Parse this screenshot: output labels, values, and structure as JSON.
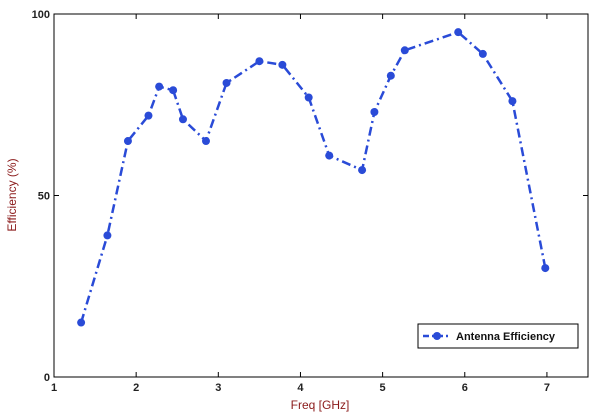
{
  "chart_data": {
    "type": "line",
    "title": "",
    "xlabel": "Freq [GHz]",
    "ylabel": "Efficiency (%)",
    "xlim": [
      1,
      7.5
    ],
    "ylim": [
      0,
      100
    ],
    "x_ticks": [
      "1",
      "2",
      "3",
      "4",
      "5",
      "6",
      "7"
    ],
    "y_ticks": [
      "0",
      "50",
      "100"
    ],
    "grid": false,
    "legend_position": "bottom-right",
    "series": [
      {
        "name": "Antenna Efficiency",
        "color": "#2a4bd7",
        "line_style": "dash-dot",
        "marker": "circle",
        "x": [
          1.33,
          1.65,
          1.9,
          2.15,
          2.28,
          2.45,
          2.57,
          2.85,
          3.1,
          3.5,
          3.78,
          4.1,
          4.35,
          4.75,
          4.9,
          5.1,
          5.27,
          5.92,
          6.22,
          6.58,
          6.98
        ],
        "y": [
          15,
          39,
          65,
          72,
          80,
          79,
          71,
          65,
          81,
          87,
          86,
          77,
          61,
          57,
          73,
          83,
          90,
          95,
          89,
          76,
          30
        ]
      }
    ]
  }
}
